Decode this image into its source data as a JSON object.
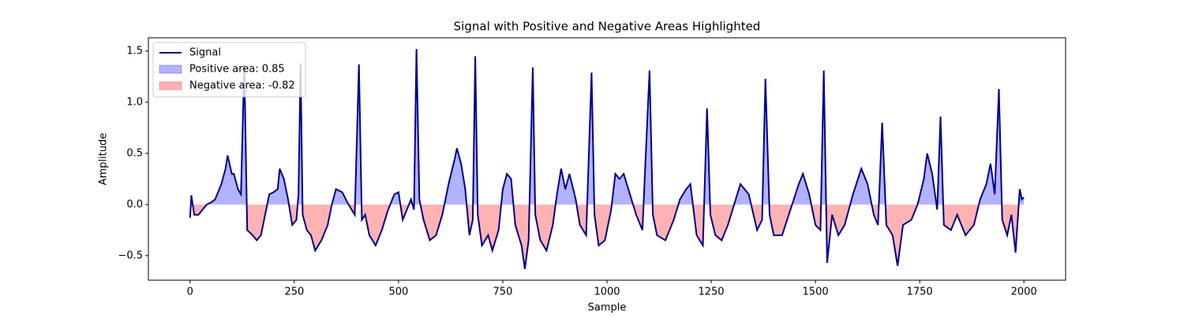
{
  "chart_data": {
    "type": "line",
    "title": "Signal with Positive and Negative Areas Highlighted",
    "xlabel": "Sample",
    "ylabel": "Amplitude",
    "xlim": [
      -100,
      2100
    ],
    "ylim": [
      -0.74,
      1.63
    ],
    "xticks": [
      0,
      250,
      500,
      750,
      1000,
      1250,
      1500,
      1750,
      2000
    ],
    "yticks": [
      {
        "value": -0.5,
        "label": "−0.5"
      },
      {
        "value": 0,
        "label": "0.0"
      },
      0.5,
      {
        "value": 1,
        "label": "1.0"
      },
      1.5
    ],
    "legend": "upper left",
    "x": [
      0,
      3,
      10,
      20,
      40,
      50,
      60,
      75,
      85,
      90,
      100,
      105,
      115,
      122,
      130,
      137,
      150,
      160,
      170,
      180,
      190,
      200,
      210,
      215,
      225,
      235,
      245,
      255,
      260,
      265,
      270,
      280,
      290,
      300,
      315,
      330,
      340,
      350,
      365,
      380,
      395,
      405,
      412,
      420,
      430,
      445,
      460,
      475,
      490,
      500,
      510,
      520,
      530,
      537,
      543,
      550,
      560,
      575,
      590,
      605,
      620,
      635,
      640,
      650,
      660,
      670,
      678,
      684,
      690,
      700,
      715,
      725,
      740,
      750,
      760,
      770,
      780,
      795,
      803,
      812,
      822,
      828,
      840,
      855,
      870,
      880,
      890,
      900,
      910,
      925,
      935,
      950,
      963,
      970,
      980,
      995,
      1010,
      1020,
      1030,
      1040,
      1055,
      1070,
      1085,
      1102,
      1110,
      1120,
      1140,
      1160,
      1175,
      1190,
      1200,
      1215,
      1230,
      1240,
      1248,
      1260,
      1275,
      1290,
      1305,
      1320,
      1340,
      1360,
      1372,
      1380,
      1390,
      1400,
      1420,
      1440,
      1460,
      1470,
      1485,
      1500,
      1512,
      1520,
      1528,
      1540,
      1555,
      1570,
      1590,
      1610,
      1625,
      1640,
      1650,
      1660,
      1670,
      1685,
      1697,
      1710,
      1730,
      1745,
      1760,
      1768,
      1780,
      1792,
      1800,
      1808,
      1825,
      1840,
      1860,
      1880,
      1895,
      1910,
      1920,
      1930,
      1940,
      1948,
      1960,
      1970,
      1980,
      1990,
      1995,
      2000
    ],
    "series": [
      {
        "name": "Signal",
        "color": "#00008b",
        "values": [
          -0.13,
          0.09,
          -0.1,
          -0.1,
          0,
          0.02,
          0.05,
          0.2,
          0.35,
          0.48,
          0.3,
          0.3,
          0.15,
          0.1,
          1.37,
          -0.25,
          -0.3,
          -0.35,
          -0.3,
          -0.1,
          0.1,
          0.12,
          0.15,
          0.35,
          0.25,
          0.05,
          -0.2,
          -0.15,
          0.1,
          1.38,
          -0.1,
          -0.25,
          -0.3,
          -0.45,
          -0.35,
          -0.2,
          0,
          0.15,
          0.12,
          0,
          -0.1,
          1.37,
          -0.15,
          -0.1,
          -0.3,
          -0.4,
          -0.25,
          -0.05,
          0.1,
          0.12,
          -0.15,
          -0.05,
          0.05,
          -0.05,
          1.52,
          0.05,
          -0.15,
          -0.35,
          -0.3,
          -0.1,
          0.2,
          0.45,
          0.55,
          0.4,
          0.15,
          -0.3,
          -0.15,
          1.45,
          -0.1,
          -0.4,
          -0.3,
          -0.45,
          -0.25,
          0.15,
          0.3,
          0.25,
          -0.2,
          -0.4,
          -0.63,
          -0.35,
          1.34,
          -0.1,
          -0.35,
          -0.45,
          -0.2,
          0.1,
          0.35,
          0.15,
          0.3,
          0.05,
          -0.2,
          -0.3,
          1.29,
          -0.1,
          -0.4,
          -0.35,
          -0.05,
          0.3,
          0.25,
          0.3,
          0.1,
          -0.1,
          -0.25,
          1.31,
          -0.1,
          -0.3,
          -0.35,
          -0.15,
          0.05,
          0.15,
          0.2,
          -0.3,
          -0.4,
          0.94,
          -0.1,
          -0.3,
          -0.35,
          -0.2,
          0,
          0.2,
          0.1,
          -0.25,
          -0.15,
          1.23,
          -0.1,
          -0.3,
          -0.3,
          -0.05,
          0.2,
          0.3,
          0.1,
          -0.2,
          -0.25,
          1.31,
          -0.57,
          -0.1,
          -0.3,
          -0.2,
          0.1,
          0.35,
          0.2,
          -0.1,
          -0.2,
          0.8,
          -0.2,
          -0.3,
          -0.6,
          -0.2,
          -0.15,
          0,
          0.25,
          0.5,
          0.3,
          -0.05,
          0.86,
          -0.2,
          -0.25,
          -0.1,
          -0.3,
          -0.2,
          0.05,
          0.2,
          0.4,
          0.1,
          1.13,
          -0.15,
          -0.3,
          -0.1,
          -0.47,
          0.15,
          0.05,
          0.07
        ]
      }
    ],
    "fills": [
      {
        "name": "Positive area: 0.85",
        "color": "#0000ff",
        "side": "positive"
      },
      {
        "name": "Negative area: -0.82",
        "color": "#ff0000",
        "side": "negative"
      }
    ]
  }
}
